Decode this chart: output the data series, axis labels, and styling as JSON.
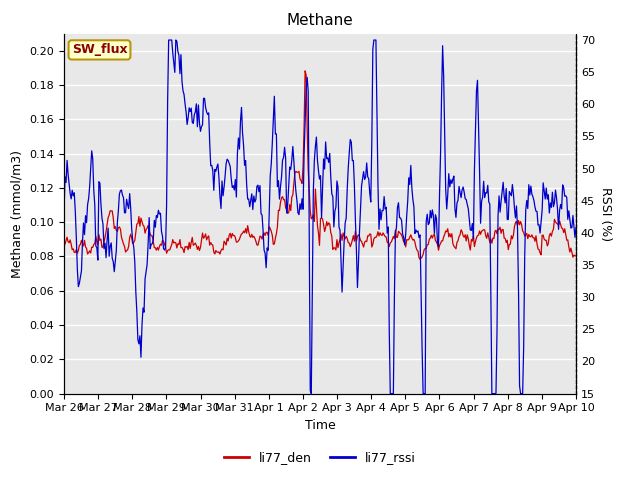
{
  "title": "Methane",
  "ylabel_left": "Methane (mmol/m3)",
  "ylabel_right": "RSSI (%)",
  "xlabel": "Time",
  "ylim_left": [
    0.0,
    0.21
  ],
  "ylim_right": [
    15,
    71
  ],
  "yticks_left": [
    0.0,
    0.02,
    0.04,
    0.06,
    0.08,
    0.1,
    0.12,
    0.14,
    0.16,
    0.18,
    0.2
  ],
  "yticks_right": [
    15,
    20,
    25,
    30,
    35,
    40,
    45,
    50,
    55,
    60,
    65,
    70
  ],
  "color_den": "#cc0000",
  "color_rssi": "#0000cc",
  "legend_labels": [
    "li77_den",
    "li77_rssi"
  ],
  "bg_color": "#e8e8e8",
  "annotation_text": "SW_flux",
  "annotation_color": "#8b0000",
  "annotation_bg": "#ffffcc",
  "annotation_border": "#b8960c",
  "x_tick_labels": [
    "Mar 26",
    "Mar 27",
    "Mar 28",
    "Mar 29",
    "Mar 30",
    "Mar 31",
    "Apr 1",
    "Apr 2",
    "Apr 3",
    "Apr 4",
    "Apr 5",
    "Apr 6",
    "Apr 7",
    "Apr 8",
    "Apr 9",
    "Apr 10"
  ],
  "n_points": 500,
  "title_fontsize": 11,
  "tick_fontsize": 8,
  "label_fontsize": 9
}
